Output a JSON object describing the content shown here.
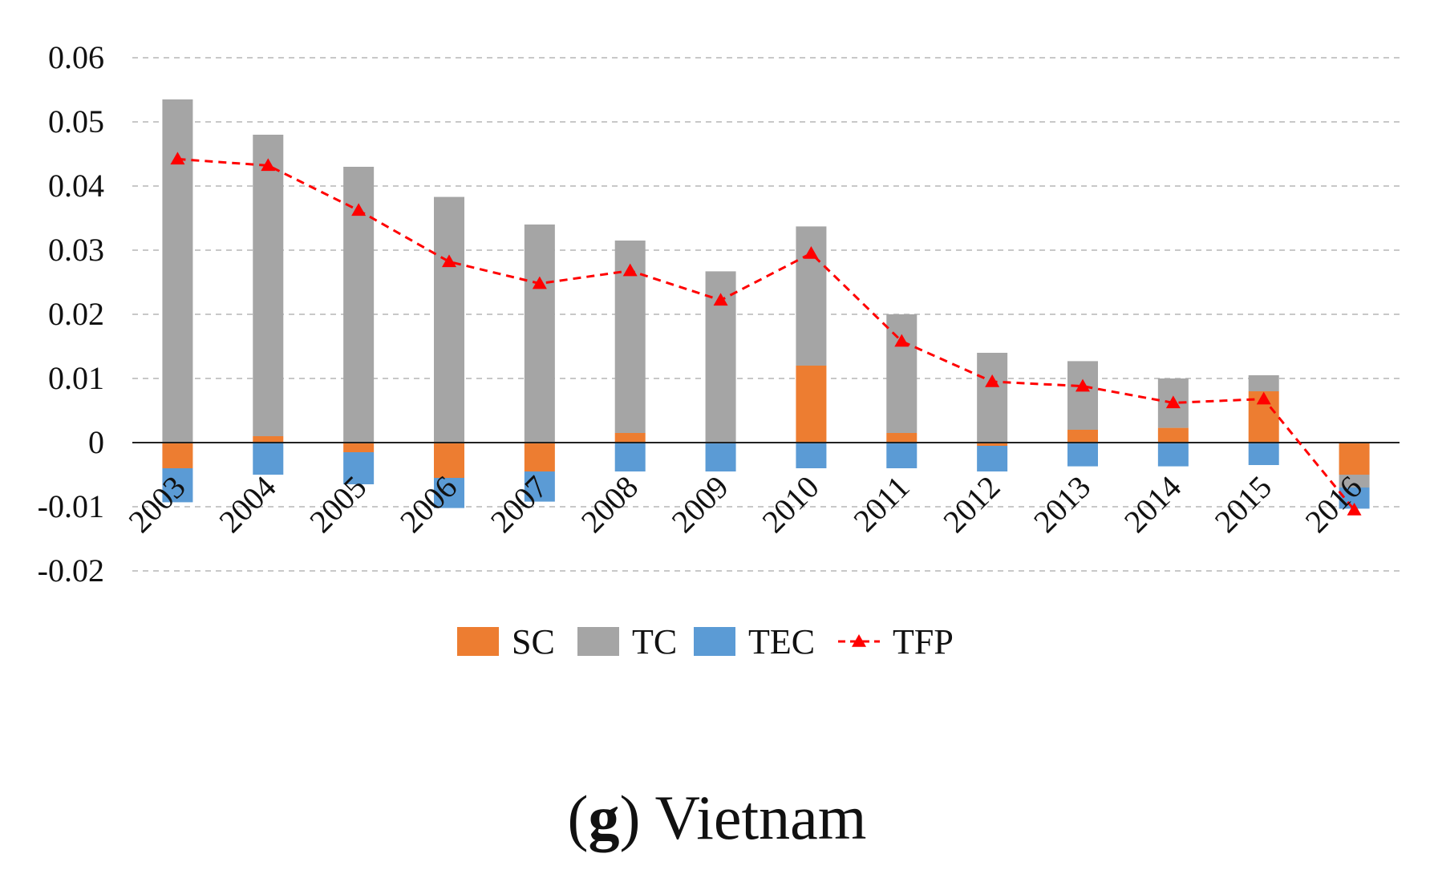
{
  "caption": {
    "prefix": "(",
    "letter": "g",
    "suffix": ")",
    "title": "Vietnam"
  },
  "chart_data": {
    "type": "bar",
    "stacked": true,
    "categories": [
      "2003",
      "2004",
      "2005",
      "2006",
      "2007",
      "2008",
      "2009",
      "2010",
      "2011",
      "2012",
      "2013",
      "2014",
      "2015",
      "2016"
    ],
    "series": [
      {
        "name": "SC",
        "kind": "bar",
        "color": "#ED7D31",
        "values": [
          -0.004,
          0.001,
          -0.0015,
          -0.0055,
          -0.0045,
          0.0015,
          0.0,
          0.012,
          0.0015,
          -0.0005,
          0.002,
          0.0023,
          0.008,
          -0.005
        ]
      },
      {
        "name": "TC",
        "kind": "bar",
        "color": "#A5A5A5",
        "values": [
          0.0535,
          0.047,
          0.043,
          0.0383,
          0.034,
          0.03,
          0.0267,
          0.0217,
          0.0185,
          0.014,
          0.0107,
          0.0077,
          0.0025,
          -0.002
        ]
      },
      {
        "name": "TEC",
        "kind": "bar",
        "color": "#5B9BD5",
        "values": [
          -0.0053,
          -0.005,
          -0.005,
          -0.0047,
          -0.0047,
          -0.0045,
          -0.0045,
          -0.004,
          -0.004,
          -0.004,
          -0.0037,
          -0.0037,
          -0.0035,
          -0.0033
        ]
      },
      {
        "name": "TFP",
        "kind": "line",
        "color": "#FF0000",
        "dashed": true,
        "marker": "triangle",
        "values": [
          0.0442,
          0.0432,
          0.0362,
          0.0282,
          0.0248,
          0.0268,
          0.0222,
          0.0295,
          0.0158,
          0.0095,
          0.0088,
          0.0062,
          0.0068,
          -0.0105
        ]
      }
    ],
    "ylim": [
      -0.02,
      0.06
    ],
    "yticks": [
      0.06,
      0.05,
      0.04,
      0.03,
      0.02,
      0.01,
      0,
      -0.01,
      -0.02
    ],
    "ytick_labels": [
      "0.06",
      "0.05",
      "0.04",
      "0.03",
      "0.02",
      "0.01",
      "0",
      "-0.01",
      "-0.02"
    ],
    "grid": true,
    "legend_position": "bottom",
    "title": "",
    "xlabel": "",
    "ylabel": ""
  }
}
